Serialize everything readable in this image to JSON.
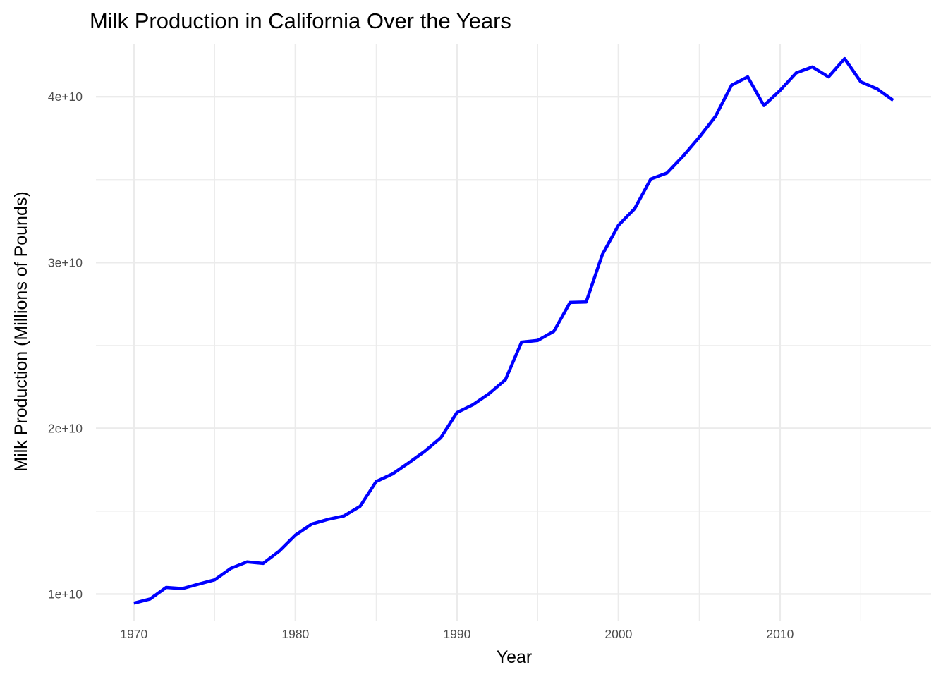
{
  "chart_data": {
    "type": "line",
    "title": "Milk Production in California Over the Years",
    "xlabel": "Year",
    "ylabel": "Milk Production (Millions of Pounds)",
    "xlim": [
      1967.65,
      2019.35
    ],
    "ylim": [
      8400000000,
      43200000000
    ],
    "x_ticks": [
      1970,
      1980,
      1990,
      2000,
      2010
    ],
    "x_tick_labels": [
      "1970",
      "1980",
      "1990",
      "2000",
      "2010"
    ],
    "x_minor_ticks": [
      1975,
      1985,
      1995,
      2005,
      2015
    ],
    "y_ticks": [
      10000000000,
      20000000000,
      30000000000,
      40000000000
    ],
    "y_tick_labels": [
      "1e+10",
      "2e+10",
      "3e+10",
      "4e+10"
    ],
    "y_minor_ticks": [
      15000000000,
      25000000000,
      35000000000
    ],
    "grid": true,
    "legend": "none",
    "line_color": "#0000ff",
    "series": [
      {
        "x": [
          1970,
          1971,
          1972,
          1973,
          1974,
          1975,
          1976,
          1977,
          1978,
          1979,
          1980,
          1981,
          1982,
          1983,
          1984,
          1985,
          1986,
          1987,
          1988,
          1989,
          1990,
          1991,
          1992,
          1993,
          1994,
          1995,
          1996,
          1997,
          1998,
          1999,
          2000,
          2001,
          2002,
          2003,
          2004,
          2005,
          2006,
          2007,
          2008,
          2009,
          2010,
          2011,
          2012,
          2013,
          2014,
          2015,
          2016,
          2017
        ],
        "values": [
          9450000000,
          9700000000,
          10400000000,
          10330000000,
          10600000000,
          10860000000,
          11550000000,
          11940000000,
          11850000000,
          12590000000,
          13560000000,
          14220000000,
          14500000000,
          14710000000,
          15290000000,
          16790000000,
          17240000000,
          17910000000,
          18610000000,
          19430000000,
          20950000000,
          21430000000,
          22100000000,
          22930000000,
          25200000000,
          25300000000,
          25850000000,
          27590000000,
          27620000000,
          30480000000,
          32250000000,
          33250000000,
          35040000000,
          35400000000,
          36420000000,
          37560000000,
          38810000000,
          40700000000,
          41200000000,
          39470000000,
          40380000000,
          41440000000,
          41800000000,
          41200000000,
          42300000000,
          40900000000,
          40480000000,
          39790000000
        ]
      }
    ]
  }
}
